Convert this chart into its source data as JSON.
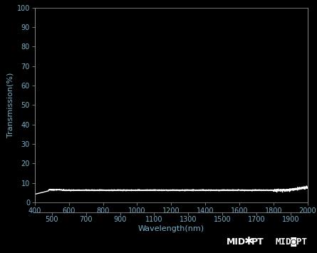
{
  "background_color": "#000000",
  "plot_bg_color": "#000000",
  "text_color": "#7ab0c8",
  "line_color": "#ffffff",
  "xlabel": "Wavelength(nm)",
  "ylabel": "Transmission(%)",
  "xlim": [
    400,
    2000
  ],
  "ylim": [
    0,
    100
  ],
  "xticks_main": [
    400,
    600,
    800,
    1000,
    1200,
    1400,
    1600,
    1800,
    2000
  ],
  "xticks_offset": [
    500,
    700,
    900,
    1100,
    1300,
    1500,
    1700,
    1900
  ],
  "yticks": [
    0,
    10,
    20,
    30,
    40,
    50,
    60,
    70,
    80,
    90,
    100
  ],
  "transmission_base": 6.25,
  "line_width": 1.0,
  "tick_color": "#888888",
  "spine_color": "#888888",
  "axis_label_fontsize": 8,
  "tick_fontsize": 7
}
